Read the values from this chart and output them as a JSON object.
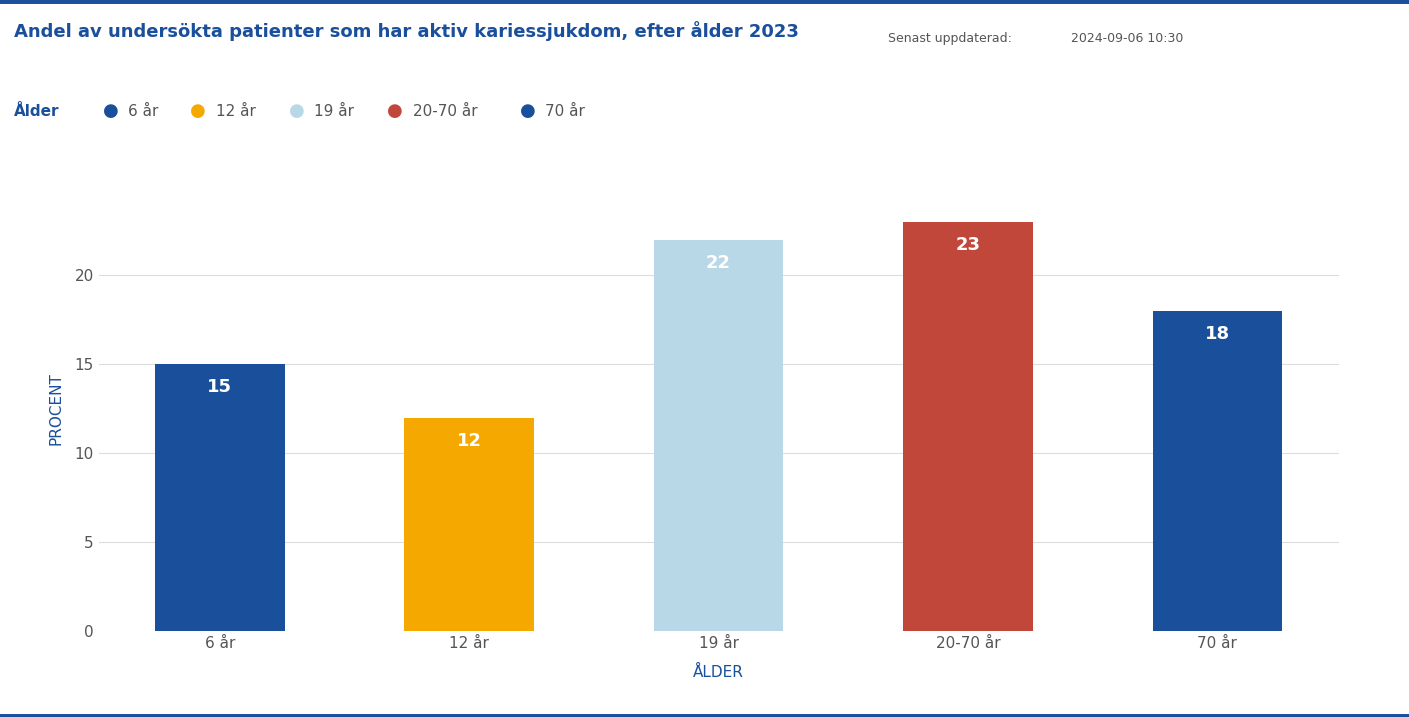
{
  "title": "Andel av undersökta patienter som har aktiv kariessjukdom, efter ålder 2023",
  "categories": [
    "6 år",
    "12 år",
    "19 år",
    "20-70 år",
    "70 år"
  ],
  "values": [
    15,
    12,
    22,
    23,
    18
  ],
  "bar_colors": [
    "#1A4F9C",
    "#F5A800",
    "#B8D8E8",
    "#C0473A",
    "#1A4F9C"
  ],
  "ylabel": "PROCENT",
  "xlabel": "ÅLDER",
  "ylim": [
    0,
    25
  ],
  "yticks": [
    0,
    5,
    10,
    15,
    20
  ],
  "legend_prefix": "Ålder",
  "legend_labels": [
    "6 år",
    "12 år",
    "19 år",
    "20-70 år",
    "70 år"
  ],
  "legend_colors": [
    "#1A4F9C",
    "#F5A800",
    "#B8D8E8",
    "#C0473A",
    "#1A4F9C"
  ],
  "updated_label": "Senast uppdaterad:",
  "updated_value": "2024-09-06 10:30",
  "top_border_color": "#1A4F9C",
  "bottom_border_color": "#1A4F9C",
  "background_color": "#FFFFFF",
  "grid_color": "#DDDDDD",
  "title_color": "#1A4F9C",
  "axis_label_color": "#1A4F9C",
  "tick_label_color": "#555555",
  "label_fontsize": 11,
  "title_fontsize": 13,
  "bar_label_fontsize": 13,
  "legend_fontsize": 11,
  "bar_width": 0.52
}
